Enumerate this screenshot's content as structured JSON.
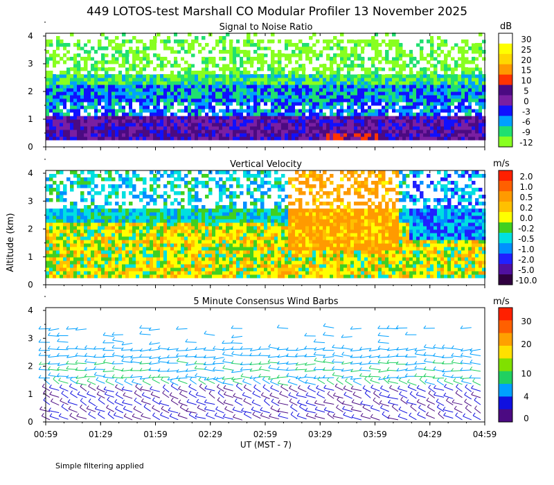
{
  "title": "449 LOTOS-test Marshall CO Modular Profiler 13 November 2025",
  "footnote": "Simple filtering applied",
  "y_axis_label": "Altitude (km)",
  "x_axis_label": "UT  (MST - 7)",
  "x_ticks": [
    "00:59",
    "01:29",
    "01:59",
    "02:29",
    "02:59",
    "03:29",
    "03:59",
    "04:29",
    "04:59"
  ],
  "y_ticks": [
    "0",
    "1",
    "2",
    "3",
    "4"
  ],
  "chart_data": [
    {
      "type": "heatmap",
      "title": "Signal to Noise Ratio",
      "unit": "dB",
      "xlabel": "UT  (MST - 7)",
      "ylabel": "Altitude (km)",
      "ylim": [
        0,
        4.1
      ],
      "xlim": [
        "00:59",
        "04:59"
      ],
      "colorbar_labels": [
        "30",
        "25",
        "20",
        "15",
        "10",
        "5",
        "0",
        "-3",
        "-6",
        "-9",
        "-12"
      ],
      "colorbar_colors": [
        "#ffffff",
        "#ffff00",
        "#ffd700",
        "#ff9900",
        "#ff3300",
        "#4b0a82",
        "#7a1fa2",
        "#1010ff",
        "#00a0ff",
        "#20e070",
        "#88ff20"
      ],
      "description_profile": {
        "altitude_km": [
          0.25,
          0.75,
          1.25,
          1.75,
          2.25,
          2.75,
          3.25,
          3.75
        ],
        "snr_db": [
          6,
          2,
          -6,
          -3,
          -9,
          -12,
          -12,
          -12
        ]
      }
    },
    {
      "type": "heatmap",
      "title": "Vertical Velocity",
      "unit": "m/s",
      "xlabel": "UT  (MST - 7)",
      "ylabel": "Altitude (km)",
      "ylim": [
        0,
        4.1
      ],
      "xlim": [
        "00:59",
        "04:59"
      ],
      "colorbar_labels": [
        "2.0",
        "1.0",
        "0.5",
        "0.2",
        "0.0",
        "-0.2",
        "-0.5",
        "-1.0",
        "-2.0",
        "-5.0",
        "-10.0"
      ],
      "colorbar_colors": [
        "#ff2000",
        "#ff6000",
        "#ff9a00",
        "#ffc000",
        "#ffff00",
        "#40d020",
        "#00e0e0",
        "#0090ff",
        "#2020ff",
        "#5010a0",
        "#300040"
      ]
    },
    {
      "type": "scatter",
      "title": "5 Minute Consensus Wind Barbs",
      "unit": "m/s",
      "xlabel": "UT  (MST - 7)",
      "ylabel": "Altitude (km)",
      "ylim": [
        0,
        4.1
      ],
      "xlim": [
        "00:59",
        "04:59"
      ],
      "colorbar_labels": [
        "30",
        "20",
        "10",
        "4",
        "0"
      ],
      "colorbar_colors": [
        "#ff2000",
        "#ff6000",
        "#ffa000",
        "#ffe000",
        "#80e000",
        "#20d060",
        "#00a0ff",
        "#1010e0",
        "#4b0a82"
      ]
    }
  ]
}
